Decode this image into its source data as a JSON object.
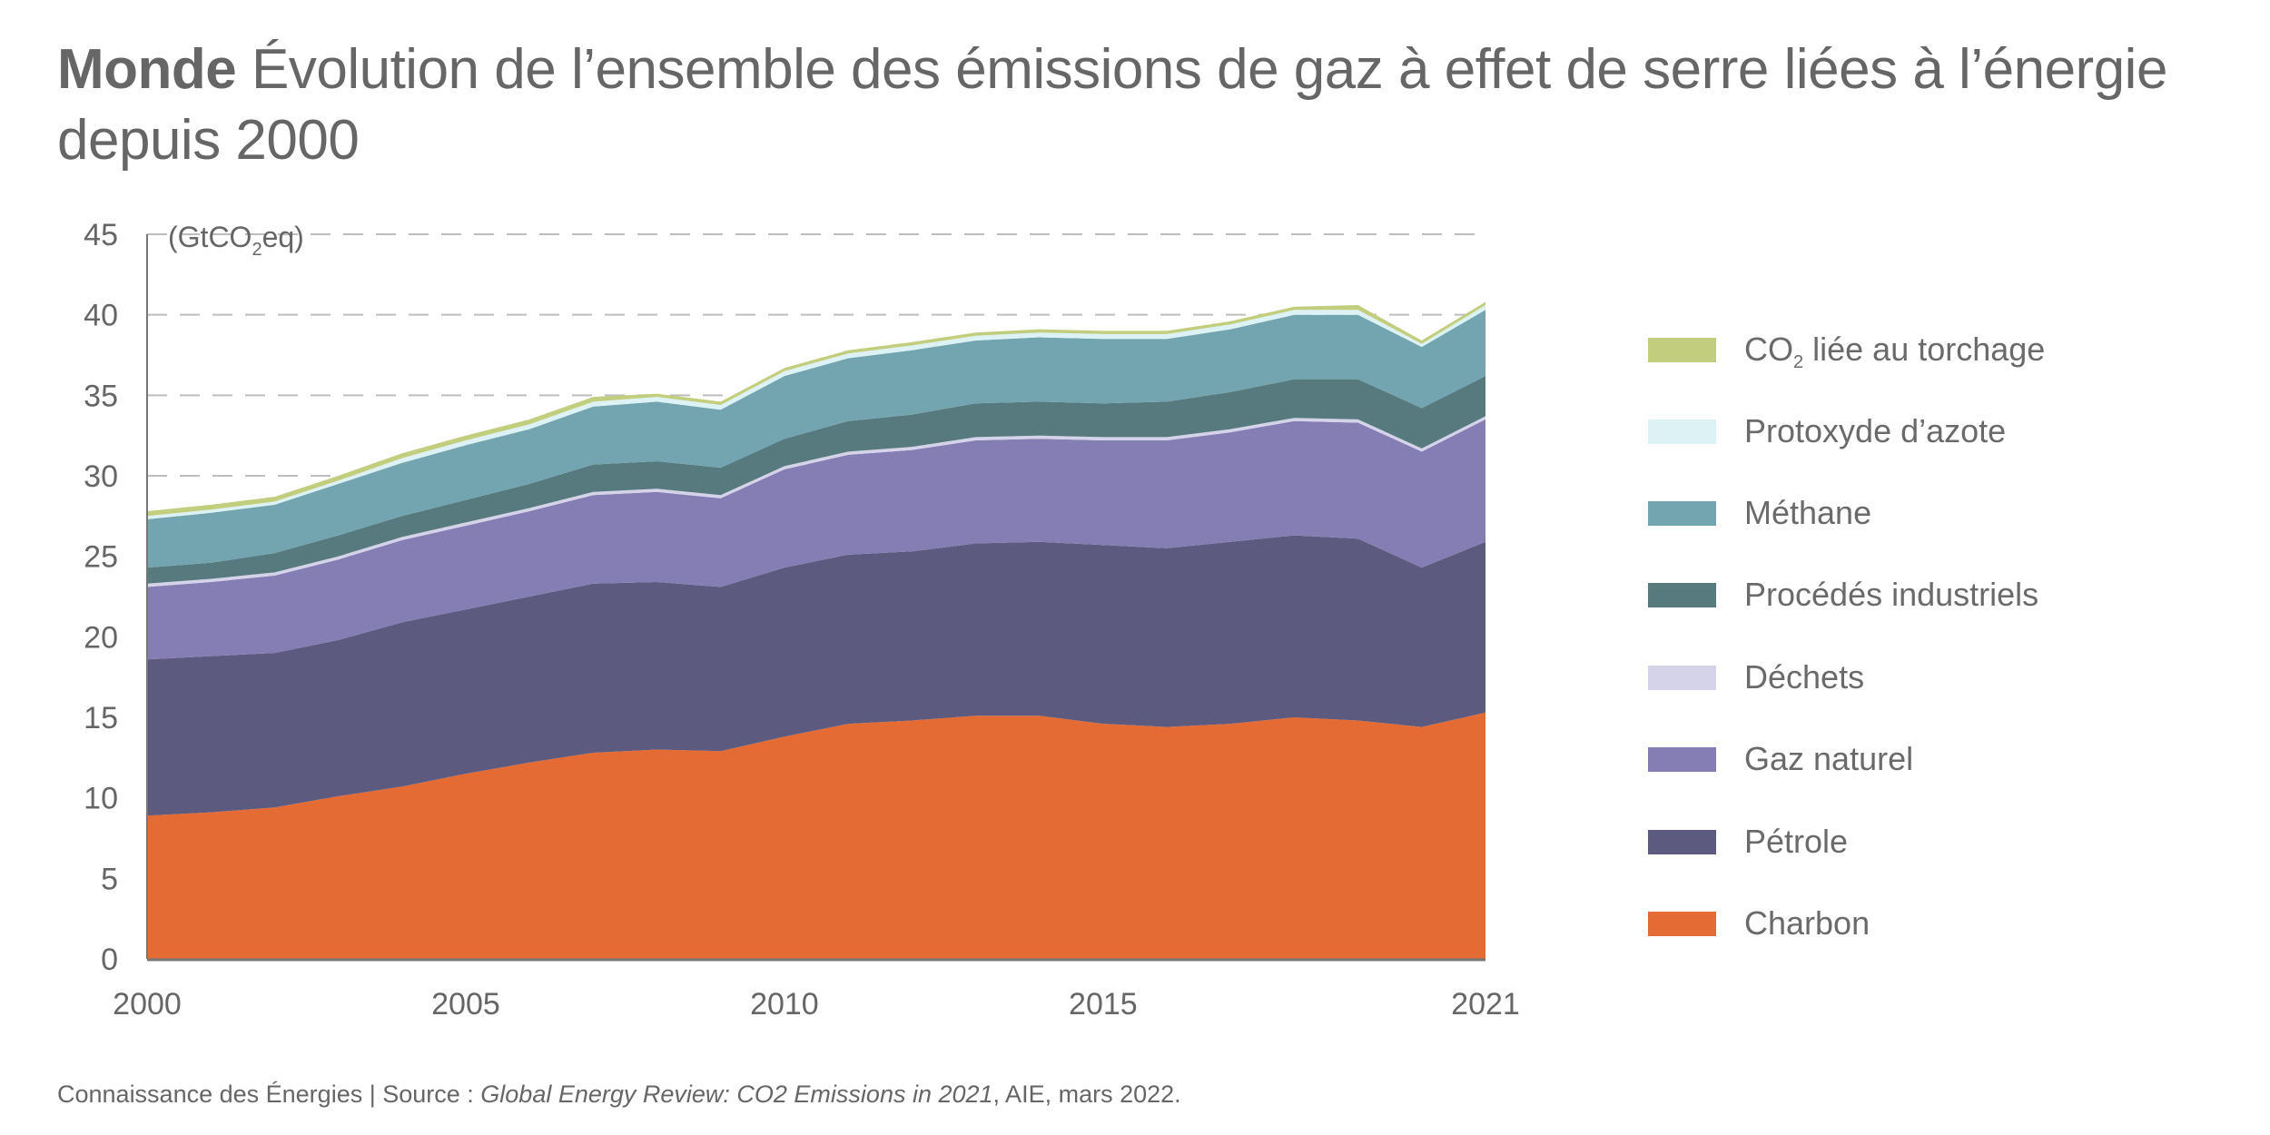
{
  "title": {
    "bold": "Monde",
    "rest": "Évolution de l’ensemble des émissions de gaz à effet de serre liées à l’énergie depuis 2000"
  },
  "footer": {
    "prefix": "Connaissance des Énergies | Source : ",
    "source_title": "Global Energy Review: CO2 Emissions in 2021",
    "suffix": ", AIE, mars 2022."
  },
  "chart_data": {
    "type": "area",
    "stacked": true,
    "title": "Monde Évolution de l’ensemble des émissions de gaz à effet de serre liées à l’énergie depuis 2000",
    "ylabel": "(GtCO2eq)",
    "ylabel_parts": {
      "pre": "(GtCO",
      "sub": "2",
      "post": "eq)"
    },
    "xlabel": "",
    "ylim": [
      0,
      45
    ],
    "yticks": [
      0,
      5,
      10,
      15,
      20,
      25,
      30,
      35,
      40,
      45
    ],
    "xticks": [
      2000,
      2005,
      2010,
      2015,
      2021
    ],
    "grid": "horizontal dashed",
    "legend_position": "right",
    "x": [
      2000,
      2001,
      2002,
      2003,
      2004,
      2005,
      2006,
      2007,
      2008,
      2009,
      2010,
      2011,
      2012,
      2013,
      2014,
      2015,
      2016,
      2017,
      2018,
      2019,
      2020,
      2021
    ],
    "series": [
      {
        "name": "Charbon",
        "color": "#e46b34",
        "values": [
          8.9,
          9.1,
          9.4,
          10.1,
          10.7,
          11.5,
          12.2,
          12.8,
          13.0,
          12.9,
          13.8,
          14.6,
          14.8,
          15.1,
          15.1,
          14.6,
          14.4,
          14.6,
          15.0,
          14.8,
          14.4,
          15.3
        ]
      },
      {
        "name": "Pétrole",
        "color": "#5c5a7e",
        "values": [
          9.7,
          9.7,
          9.6,
          9.7,
          10.2,
          10.2,
          10.3,
          10.5,
          10.4,
          10.2,
          10.5,
          10.5,
          10.5,
          10.7,
          10.8,
          11.1,
          11.1,
          11.3,
          11.3,
          11.3,
          9.9,
          10.6
        ]
      },
      {
        "name": "Gaz naturel",
        "color": "#847eb5",
        "values": [
          4.5,
          4.6,
          4.8,
          5.0,
          5.1,
          5.2,
          5.3,
          5.5,
          5.6,
          5.5,
          6.1,
          6.2,
          6.3,
          6.4,
          6.4,
          6.5,
          6.7,
          6.8,
          7.1,
          7.2,
          7.2,
          7.6
        ]
      },
      {
        "name": "Déchets",
        "color": "#d5d3ea",
        "values": [
          0.2,
          0.2,
          0.2,
          0.2,
          0.2,
          0.2,
          0.2,
          0.2,
          0.2,
          0.2,
          0.2,
          0.2,
          0.2,
          0.2,
          0.2,
          0.2,
          0.2,
          0.2,
          0.2,
          0.2,
          0.2,
          0.2
        ]
      },
      {
        "name": "Procédés industriels",
        "color": "#577a7f",
        "values": [
          1.0,
          1.0,
          1.2,
          1.3,
          1.3,
          1.4,
          1.5,
          1.7,
          1.7,
          1.7,
          1.7,
          1.9,
          2.0,
          2.1,
          2.1,
          2.1,
          2.2,
          2.3,
          2.4,
          2.5,
          2.5,
          2.5
        ]
      },
      {
        "name": "Méthane",
        "color": "#72a5b0",
        "values": [
          3.0,
          3.1,
          3.0,
          3.2,
          3.3,
          3.4,
          3.4,
          3.6,
          3.7,
          3.6,
          3.9,
          3.9,
          4.0,
          3.9,
          4.0,
          4.0,
          3.9,
          3.9,
          4.0,
          4.0,
          3.8,
          4.1
        ]
      },
      {
        "name": "Protoxyde d’azote",
        "color": "#dcf2f5",
        "values": [
          0.2,
          0.2,
          0.2,
          0.2,
          0.3,
          0.3,
          0.3,
          0.3,
          0.3,
          0.3,
          0.3,
          0.3,
          0.3,
          0.3,
          0.3,
          0.3,
          0.3,
          0.3,
          0.3,
          0.3,
          0.2,
          0.3
        ]
      },
      {
        "name": "CO2 liée au torchage",
        "color": "#c2cd7e",
        "values": [
          0.3,
          0.3,
          0.3,
          0.3,
          0.3,
          0.3,
          0.3,
          0.3,
          0.2,
          0.2,
          0.2,
          0.2,
          0.2,
          0.2,
          0.2,
          0.2,
          0.2,
          0.2,
          0.2,
          0.3,
          0.2,
          0.2
        ]
      }
    ]
  },
  "legend": {
    "items": [
      {
        "label": "CO",
        "sub": "2",
        "post": " liée au torchage",
        "color": "#c2cd7e"
      },
      {
        "label": "Protoxyde d’azote",
        "sub": "",
        "post": "",
        "color": "#dcf2f5"
      },
      {
        "label": "Méthane",
        "sub": "",
        "post": "",
        "color": "#72a5b0"
      },
      {
        "label": "Procédés industriels",
        "sub": "",
        "post": "",
        "color": "#577a7f"
      },
      {
        "label": "Déchets",
        "sub": "",
        "post": "",
        "color": "#d5d3ea"
      },
      {
        "label": "Gaz naturel",
        "sub": "",
        "post": "",
        "color": "#847eb5"
      },
      {
        "label": "Pétrole",
        "sub": "",
        "post": "",
        "color": "#5c5a7e"
      },
      {
        "label": "Charbon",
        "sub": "",
        "post": "",
        "color": "#e46b34"
      }
    ]
  }
}
